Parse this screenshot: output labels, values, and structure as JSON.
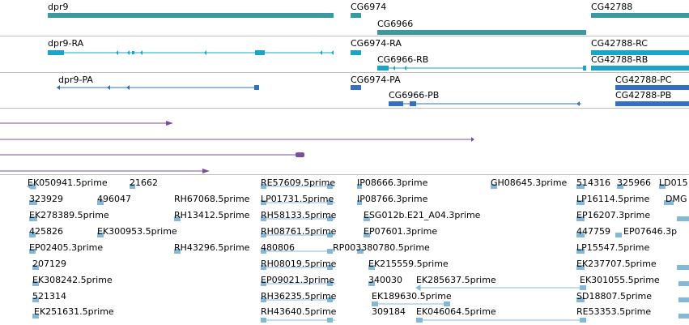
{
  "colors": {
    "gene": "#3a9aa0",
    "mrna": "#19a4c8",
    "protein": "#3270c8",
    "purple": "#7a4fa0",
    "est": "#84b8d8",
    "separator": "#bdbdbd"
  },
  "tracks": {
    "genes": {
      "dpr9": "dpr9",
      "cg6974": "CG6974",
      "cg6966": "CG6966",
      "cg42788": "CG42788"
    },
    "transcripts": {
      "dpr9_ra": "dpr9-RA",
      "cg6974_ra": "CG6974-RA",
      "cg6966_rb": "CG6966-RB",
      "cg42788_rc": "CG42788-RC",
      "cg42788_rb": "CG42788-RB"
    },
    "proteins": {
      "dpr9_pa": "dpr9-PA",
      "cg6974_pa": "CG6974-PA",
      "cg6966_pb": "CG6966-PB",
      "cg42788_pc": "CG42788-PC",
      "cg42788_pb": "CG42788-PB"
    },
    "ests": [
      "EK050941.5prime",
      "21662",
      "RE57609.5prime",
      "IP08666.3prime",
      "GH08645.3prime",
      "514316",
      "325966",
      "LD015",
      "323929",
      "496047",
      "RH67068.5prime",
      "LP01731.5prime",
      "IP08766.3prime",
      "LP16114.5prime",
      "DMG",
      "EK278389.5prime",
      "RH13412.5prime",
      "RH58133.5prime",
      "ESG012b.E21_A04.3prime",
      "EP16207.3prime",
      "425826",
      "EK300953.5prime",
      "RH08761.5prime",
      "EP07601.3prime",
      "447759",
      "EP07646.3p",
      "EP02405.3prime",
      "RH43296.5prime",
      "480806",
      "RP003380780.5prime",
      "LP15547.5prime",
      "207129",
      "RH08019.5prime",
      "EK215559.5prime",
      "EK237707.5prime",
      "EK308242.5prime",
      "EP09021.3prime",
      "340030",
      "EK285637.5prime",
      "EK301055.5prime",
      "521314",
      "RH36235.5prime",
      "EK189630.5prime",
      "SD18807.5prime",
      "EK251631.5prime",
      "RH43640.5prime",
      "309184",
      "EK046064.5prime",
      "RE53353.5prime"
    ]
  }
}
